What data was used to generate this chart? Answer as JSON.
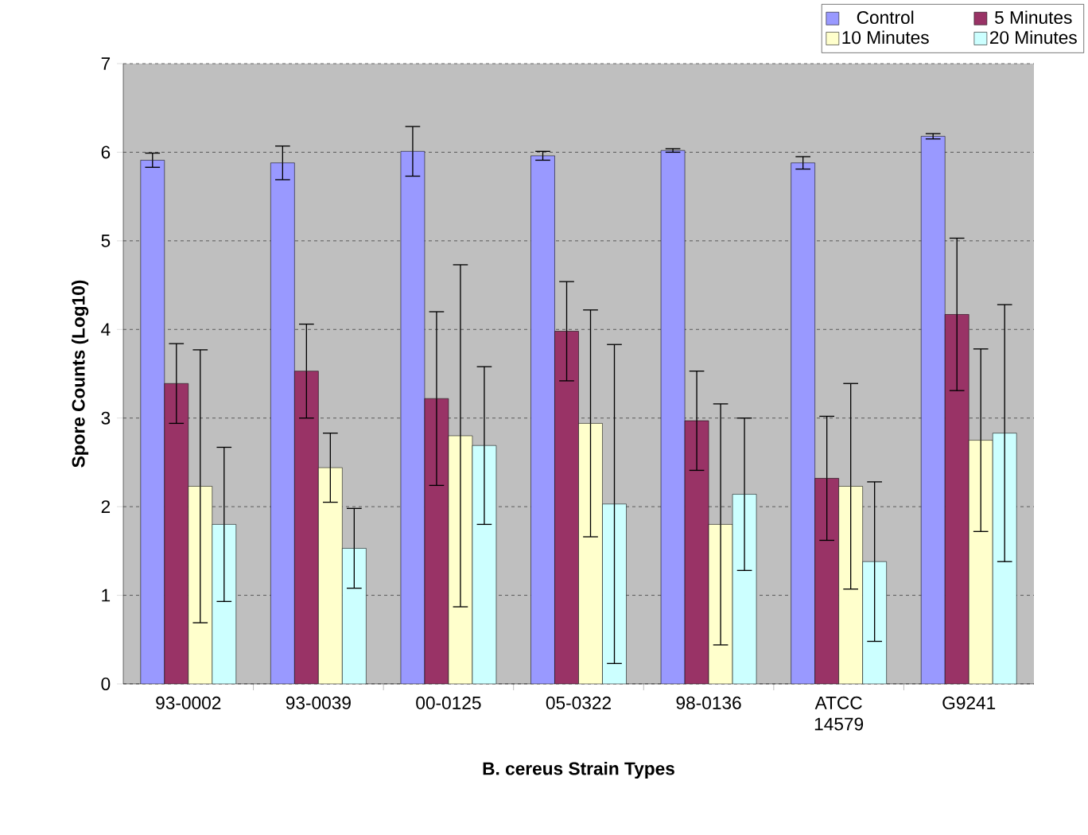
{
  "chart_data": {
    "type": "bar",
    "xlabel": "B. cereus Strain Types",
    "ylabel": "Spore Counts (Log10)",
    "categories": [
      "93-0002",
      "93-0039",
      "00-0125",
      "05-0322",
      "98-0136",
      "ATCC 14579",
      "G9241"
    ],
    "series": [
      {
        "name": "Control",
        "color": "#9999ff",
        "values": [
          5.91,
          5.88,
          6.01,
          5.96,
          6.02,
          5.88,
          6.18
        ],
        "errors": [
          0.08,
          0.19,
          0.28,
          0.05,
          0.02,
          0.07,
          0.03
        ]
      },
      {
        "name": "5 Minutes",
        "color": "#993366",
        "values": [
          3.39,
          3.53,
          3.22,
          3.98,
          2.97,
          2.32,
          4.17
        ],
        "errors": [
          0.45,
          0.53,
          0.98,
          0.56,
          0.56,
          0.7,
          0.86
        ]
      },
      {
        "name": "10 Minutes",
        "color": "#ffffcc",
        "values": [
          2.23,
          2.44,
          2.8,
          2.94,
          1.8,
          2.23,
          2.75
        ],
        "errors": [
          1.54,
          0.39,
          1.93,
          1.28,
          1.36,
          1.16,
          1.03
        ]
      },
      {
        "name": "20 Minutes",
        "color": "#ccffff",
        "values": [
          1.8,
          1.53,
          2.69,
          2.03,
          2.14,
          1.38,
          2.83
        ],
        "errors": [
          0.87,
          0.45,
          0.89,
          1.8,
          0.86,
          0.9,
          1.45
        ]
      }
    ],
    "ylim": [
      0,
      7
    ],
    "yticks": [
      0,
      1,
      2,
      3,
      4,
      5,
      6,
      7
    ],
    "grid": "y",
    "legend": "top right"
  }
}
